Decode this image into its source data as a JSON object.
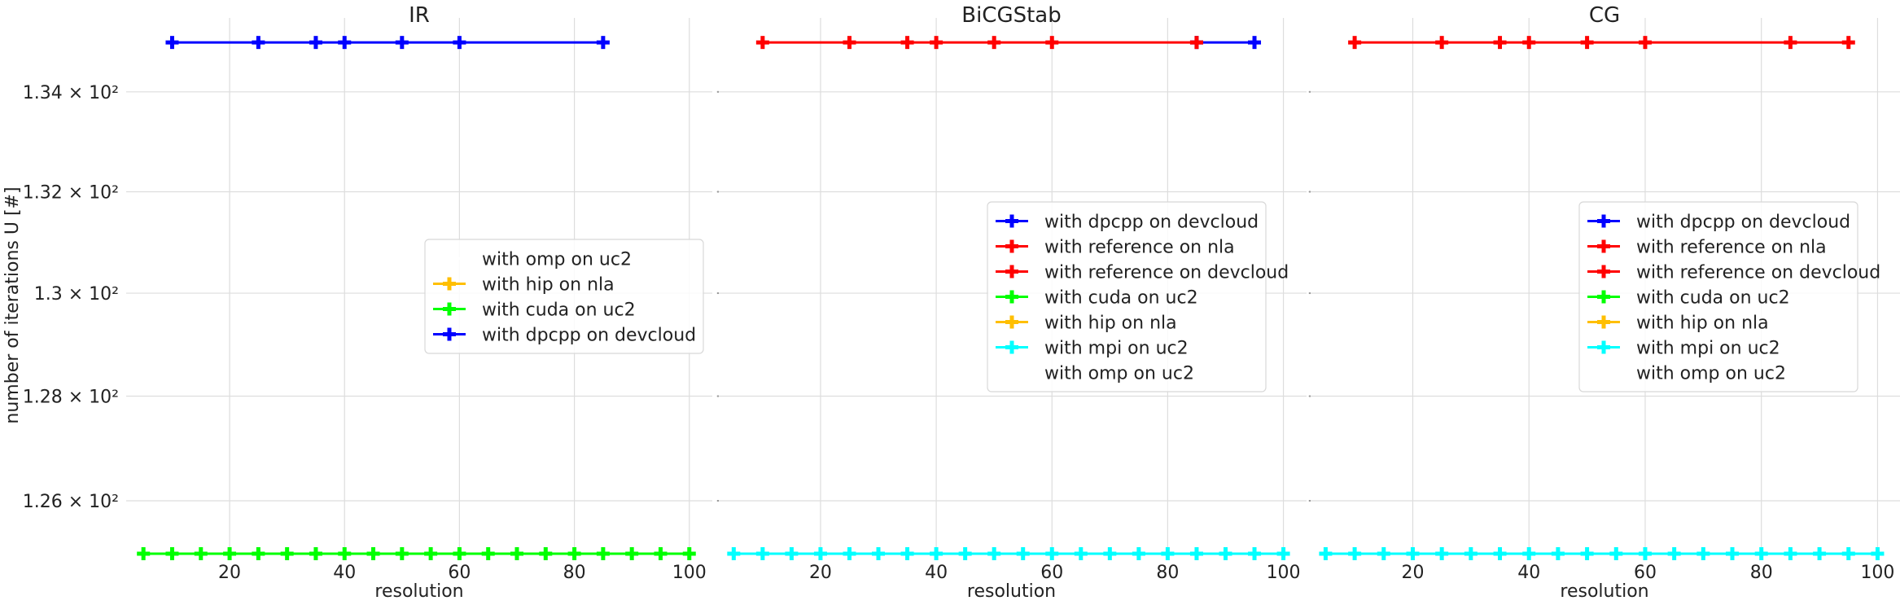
{
  "figure": {
    "ylabel": "number of iterations U [#]",
    "ytick_labels": [
      "1.26 × 10²",
      "1.28 × 10²",
      "1.3 × 10²",
      "1.32 × 10²",
      "1.34 × 10²"
    ]
  },
  "colors": {
    "dpcpp": "#0000ff",
    "reference": "#ff0000",
    "cuda": "#00ff00",
    "hip": "#ffbf00",
    "mpi": "#00ffff",
    "omp": "#ffffff",
    "grid": "#dddddd"
  },
  "chart_data": [
    {
      "type": "line",
      "title": "IR",
      "xlabel": "resolution",
      "ylabel": "number of iterations U [#]",
      "xlim": [
        2,
        104
      ],
      "ylim": [
        125,
        135.5
      ],
      "yscale": "log",
      "xticks": [
        20,
        40,
        60,
        80,
        100
      ],
      "yticks": [
        126,
        128,
        130,
        132,
        134
      ],
      "grid": true,
      "legend_position": "center",
      "series": [
        {
          "name": "with omp on uc2",
          "color": "#ffffff",
          "x": [],
          "y": []
        },
        {
          "name": "with hip on nla",
          "color": "#ffbf00",
          "x": [],
          "y": []
        },
        {
          "name": "with cuda on uc2",
          "color": "#00ff00",
          "x": [
            5,
            10,
            15,
            20,
            25,
            30,
            35,
            40,
            45,
            50,
            55,
            60,
            65,
            70,
            75,
            80,
            85,
            90,
            95,
            100
          ],
          "y": [
            125,
            125,
            125,
            125,
            125,
            125,
            125,
            125,
            125,
            125,
            125,
            125,
            125,
            125,
            125,
            125,
            125,
            125,
            125,
            125
          ]
        },
        {
          "name": "with dpcpp on devcloud",
          "color": "#0000ff",
          "x": [
            10,
            25,
            35,
            40,
            50,
            60,
            85
          ],
          "y": [
            135,
            135,
            135,
            135,
            135,
            135,
            135
          ]
        }
      ]
    },
    {
      "type": "line",
      "title": "BiCGStab",
      "xlabel": "resolution",
      "ylabel": "",
      "xlim": [
        2,
        104
      ],
      "ylim": [
        125,
        135.5
      ],
      "yscale": "log",
      "xticks": [
        20,
        40,
        60,
        80,
        100
      ],
      "yticks": [
        126,
        128,
        130,
        132,
        134
      ],
      "grid": true,
      "legend_position": "center-right",
      "series": [
        {
          "name": "with dpcpp on devcloud",
          "color": "#0000ff",
          "x": [
            85,
            95
          ],
          "y": [
            135,
            135
          ]
        },
        {
          "name": "with reference on nla",
          "color": "#ff0000",
          "x": [
            10,
            25,
            35,
            40,
            50,
            60,
            85
          ],
          "y": [
            135,
            135,
            135,
            135,
            135,
            135,
            135
          ]
        },
        {
          "name": "with reference on devcloud",
          "color": "#ff0000",
          "x": [],
          "y": []
        },
        {
          "name": "with cuda on uc2",
          "color": "#00ff00",
          "x": [],
          "y": []
        },
        {
          "name": "with hip on nla",
          "color": "#ffbf00",
          "x": [],
          "y": []
        },
        {
          "name": "with mpi on uc2",
          "color": "#00ffff",
          "x": [
            5,
            10,
            15,
            20,
            25,
            30,
            35,
            40,
            45,
            50,
            55,
            60,
            65,
            70,
            75,
            80,
            85,
            90,
            95,
            100
          ],
          "y": [
            125,
            125,
            125,
            125,
            125,
            125,
            125,
            125,
            125,
            125,
            125,
            125,
            125,
            125,
            125,
            125,
            125,
            125,
            125,
            125
          ]
        },
        {
          "name": "with omp on uc2",
          "color": "#ffffff",
          "x": [],
          "y": []
        }
      ]
    },
    {
      "type": "line",
      "title": "CG",
      "xlabel": "resolution",
      "ylabel": "",
      "xlim": [
        2,
        104
      ],
      "ylim": [
        125,
        135.5
      ],
      "yscale": "log",
      "xticks": [
        20,
        40,
        60,
        80,
        100
      ],
      "yticks": [
        126,
        128,
        130,
        132,
        134
      ],
      "grid": true,
      "legend_position": "center-right",
      "series": [
        {
          "name": "with dpcpp on devcloud",
          "color": "#0000ff",
          "x": [],
          "y": []
        },
        {
          "name": "with reference on nla",
          "color": "#ff0000",
          "x": [],
          "y": []
        },
        {
          "name": "with reference on devcloud",
          "color": "#ff0000",
          "x": [
            10,
            25,
            35,
            40,
            50,
            60,
            85,
            95
          ],
          "y": [
            135,
            135,
            135,
            135,
            135,
            135,
            135,
            135
          ]
        },
        {
          "name": "with cuda on uc2",
          "color": "#00ff00",
          "x": [],
          "y": []
        },
        {
          "name": "with hip on nla",
          "color": "#ffbf00",
          "x": [],
          "y": []
        },
        {
          "name": "with mpi on uc2",
          "color": "#00ffff",
          "x": [
            5,
            10,
            15,
            20,
            25,
            30,
            35,
            40,
            45,
            50,
            55,
            60,
            65,
            70,
            75,
            80,
            85,
            90,
            95,
            100
          ],
          "y": [
            125,
            125,
            125,
            125,
            125,
            125,
            125,
            125,
            125,
            125,
            125,
            125,
            125,
            125,
            125,
            125,
            125,
            125,
            125,
            125
          ]
        },
        {
          "name": "with omp on uc2",
          "color": "#ffffff",
          "x": [],
          "y": []
        }
      ]
    }
  ]
}
